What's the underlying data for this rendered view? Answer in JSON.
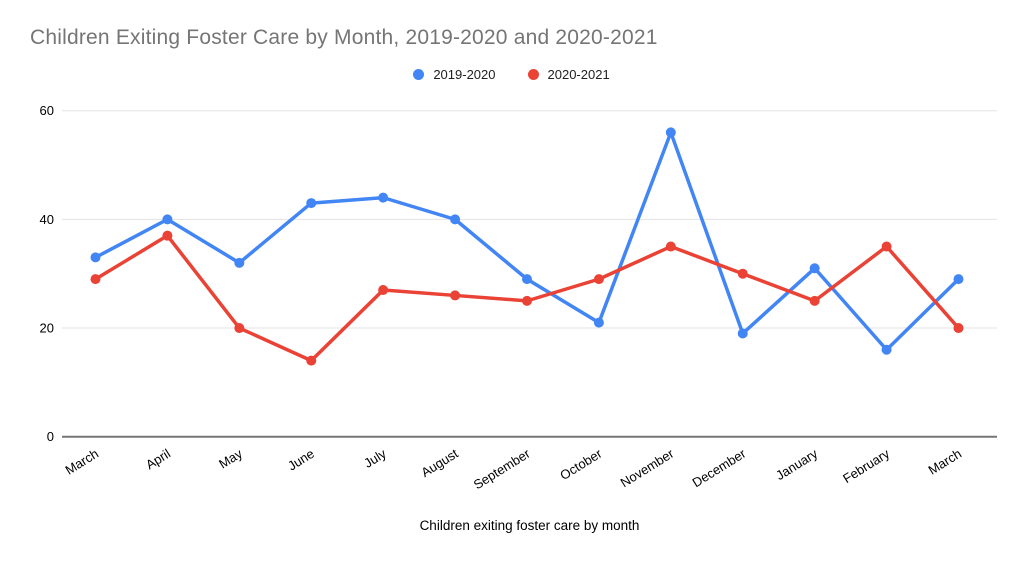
{
  "title": "Children Exiting Foster Care by Month, 2019-2020 and 2020-2021",
  "legend": [
    {
      "label": "2019-2020",
      "color": "#4285F4",
      "swatch_icon": "circle-dot-icon"
    },
    {
      "label": "2020-2021",
      "color": "#EA4335",
      "swatch_icon": "circle-dot-icon"
    }
  ],
  "axis": {
    "x_title": "Children exiting foster care by month",
    "y_tick_labels": [
      "0",
      "20",
      "40",
      "60"
    ]
  },
  "chart_data": {
    "type": "line",
    "title": "Children Exiting Foster Care by Month, 2019-2020 and 2020-2021",
    "xlabel": "Children exiting foster care by month",
    "ylabel": "",
    "categories": [
      "March",
      "April",
      "May",
      "June",
      "July",
      "August",
      "September",
      "October",
      "November",
      "December",
      "January",
      "February",
      "March"
    ],
    "series": [
      {
        "name": "2019-2020",
        "color": "#4285F4",
        "values": [
          33,
          40,
          32,
          43,
          44,
          40,
          29,
          21,
          56,
          19,
          31,
          16,
          29
        ]
      },
      {
        "name": "2020-2021",
        "color": "#EA4335",
        "values": [
          29,
          37,
          20,
          14,
          27,
          26,
          25,
          29,
          35,
          30,
          25,
          35,
          20
        ]
      }
    ],
    "ylim": [
      0,
      60
    ],
    "y_ticks": [
      0,
      20,
      40,
      60
    ],
    "grid": true,
    "legend_position": "top-center",
    "marker": "circle",
    "x_label_rotation_deg": -32,
    "colors": {
      "gridline": "#e3e3e3",
      "axis_line": "#757575",
      "tick_label": "#000000",
      "title": "#757575"
    }
  }
}
